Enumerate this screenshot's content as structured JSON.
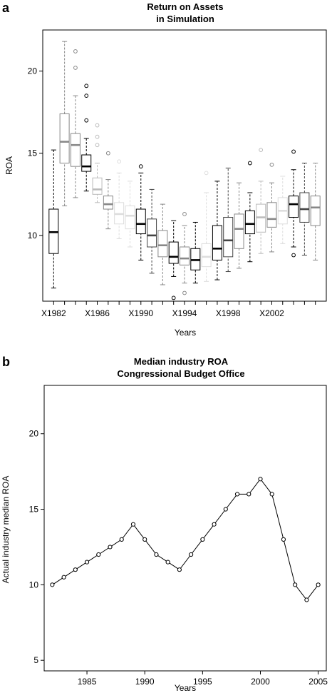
{
  "panels": {
    "a": {
      "letter": "a",
      "title_line1": "Return on Assets",
      "title_line2": "in Simulation"
    },
    "b": {
      "letter": "b",
      "title_line1": "Median industry ROA",
      "title_line2": "Congressional Budget Office"
    }
  },
  "chart_data": [
    {
      "type": "box",
      "title": "Return on Assets in Simulation",
      "xlabel": "Years",
      "ylabel": "ROA",
      "ylim": [
        6,
        22.5
      ],
      "yticks": [
        10,
        15,
        20
      ],
      "xtick_labels": [
        "X1982",
        "X1986",
        "X1990",
        "X1994",
        "X1998",
        "X2002"
      ],
      "xtick_positions": [
        1,
        5,
        9,
        13,
        17,
        21
      ],
      "grid": false,
      "series": [
        {
          "x": 1,
          "color": "#000000",
          "wlo": 6.8,
          "q1": 8.9,
          "med": 10.2,
          "q3": 11.6,
          "whi": 15.2,
          "out": []
        },
        {
          "x": 2,
          "color": "#888888",
          "wlo": 11.8,
          "q1": 14.4,
          "med": 15.7,
          "q3": 17.4,
          "whi": 21.8,
          "out": []
        },
        {
          "x": 3,
          "color": "#888888",
          "wlo": 12.3,
          "q1": 14.2,
          "med": 15.5,
          "q3": 16.2,
          "whi": 18.5,
          "out": [
            20.2,
            21.2
          ]
        },
        {
          "x": 4,
          "color": "#000000",
          "wlo": 12.7,
          "q1": 13.9,
          "med": 14.2,
          "q3": 14.9,
          "whi": 15.9,
          "out": [
            17.0,
            18.5,
            19.1
          ]
        },
        {
          "x": 5,
          "color": "#bbbbbb",
          "wlo": 12.0,
          "q1": 12.5,
          "med": 12.8,
          "q3": 13.5,
          "whi": 14.4,
          "out": [
            15.5,
            16.0,
            16.7
          ]
        },
        {
          "x": 6,
          "color": "#888888",
          "wlo": 10.4,
          "q1": 11.6,
          "med": 11.9,
          "q3": 12.4,
          "whi": 13.4,
          "out": [
            15.0
          ]
        },
        {
          "x": 7,
          "color": "#dddddd",
          "wlo": 9.8,
          "q1": 10.7,
          "med": 11.3,
          "q3": 12.0,
          "whi": 13.8,
          "out": [
            14.5
          ]
        },
        {
          "x": 8,
          "color": "#dddddd",
          "wlo": 9.3,
          "q1": 10.4,
          "med": 11.2,
          "q3": 11.8,
          "whi": 13.3,
          "out": []
        },
        {
          "x": 9,
          "color": "#000000",
          "wlo": 8.5,
          "q1": 10.1,
          "med": 10.7,
          "q3": 11.6,
          "whi": 13.8,
          "out": [
            14.2
          ]
        },
        {
          "x": 10,
          "color": "#444444",
          "wlo": 7.7,
          "q1": 9.3,
          "med": 10.0,
          "q3": 11.0,
          "whi": 12.8,
          "out": []
        },
        {
          "x": 11,
          "color": "#888888",
          "wlo": 7.0,
          "q1": 8.7,
          "med": 9.4,
          "q3": 10.3,
          "whi": 11.9,
          "out": []
        },
        {
          "x": 12,
          "color": "#000000",
          "wlo": 7.5,
          "q1": 8.3,
          "med": 8.7,
          "q3": 9.6,
          "whi": 10.9,
          "out": [
            6.2
          ]
        },
        {
          "x": 13,
          "color": "#888888",
          "wlo": 7.1,
          "q1": 8.2,
          "med": 8.6,
          "q3": 9.3,
          "whi": 10.6,
          "out": [
            6.5,
            11.3
          ]
        },
        {
          "x": 14,
          "color": "#000000",
          "wlo": 7.1,
          "q1": 7.9,
          "med": 8.5,
          "q3": 9.2,
          "whi": 10.8,
          "out": []
        },
        {
          "x": 15,
          "color": "#dddddd",
          "wlo": 7.2,
          "q1": 8.1,
          "med": 8.7,
          "q3": 9.5,
          "whi": 12.6,
          "out": [
            13.8
          ]
        },
        {
          "x": 16,
          "color": "#000000",
          "wlo": 7.3,
          "q1": 8.5,
          "med": 9.2,
          "q3": 10.6,
          "whi": 13.3,
          "out": []
        },
        {
          "x": 17,
          "color": "#444444",
          "wlo": 7.8,
          "q1": 8.7,
          "med": 9.7,
          "q3": 11.1,
          "whi": 14.1,
          "out": []
        },
        {
          "x": 18,
          "color": "#888888",
          "wlo": 8.0,
          "q1": 9.2,
          "med": 10.4,
          "q3": 11.3,
          "whi": 13.2,
          "out": []
        },
        {
          "x": 19,
          "color": "#000000",
          "wlo": 8.4,
          "q1": 10.1,
          "med": 10.7,
          "q3": 11.5,
          "whi": 12.6,
          "out": [
            14.4
          ]
        },
        {
          "x": 20,
          "color": "#bbbbbb",
          "wlo": 8.9,
          "q1": 10.2,
          "med": 11.1,
          "q3": 11.9,
          "whi": 13.3,
          "out": [
            15.2
          ]
        },
        {
          "x": 21,
          "color": "#888888",
          "wlo": 9.0,
          "q1": 10.5,
          "med": 11.0,
          "q3": 12.0,
          "whi": 13.2,
          "out": [
            14.3
          ]
        },
        {
          "x": 22,
          "color": "#dddddd",
          "wlo": 9.5,
          "q1": 10.7,
          "med": 11.5,
          "q3": 12.3,
          "whi": 13.6,
          "out": []
        },
        {
          "x": 23,
          "color": "#000000",
          "wlo": 9.3,
          "q1": 11.1,
          "med": 11.9,
          "q3": 12.4,
          "whi": 14.0,
          "out": [
            8.8,
            15.1
          ]
        },
        {
          "x": 24,
          "color": "#444444",
          "wlo": 8.8,
          "q1": 10.8,
          "med": 11.6,
          "q3": 12.6,
          "whi": 14.4,
          "out": []
        },
        {
          "x": 25,
          "color": "#888888",
          "wlo": 8.5,
          "q1": 10.6,
          "med": 11.7,
          "q3": 12.4,
          "whi": 14.4,
          "out": []
        }
      ],
      "xlim": [
        0,
        26
      ]
    },
    {
      "type": "line",
      "title": "Median industry ROA Congressional Budget Office",
      "xlabel": "Years",
      "ylabel": "Actual industry median ROA",
      "xlim": [
        1981.3,
        2005.7
      ],
      "ylim": [
        4.3,
        23.2
      ],
      "xticks": [
        1985,
        1990,
        1995,
        2000,
        2005
      ],
      "yticks": [
        5,
        10,
        15,
        20
      ],
      "grid": false,
      "x": [
        1982,
        1983,
        1984,
        1985,
        1986,
        1987,
        1988,
        1989,
        1990,
        1991,
        1992,
        1993,
        1994,
        1995,
        1996,
        1997,
        1998,
        1999,
        2000,
        2001,
        2002,
        2003,
        2004,
        2005
      ],
      "y": [
        10,
        10.5,
        11,
        11.5,
        12,
        12.5,
        13,
        14,
        13,
        12,
        11.5,
        11,
        12,
        13,
        14,
        15,
        16,
        16,
        17,
        16,
        13,
        10,
        9,
        10
      ]
    }
  ]
}
